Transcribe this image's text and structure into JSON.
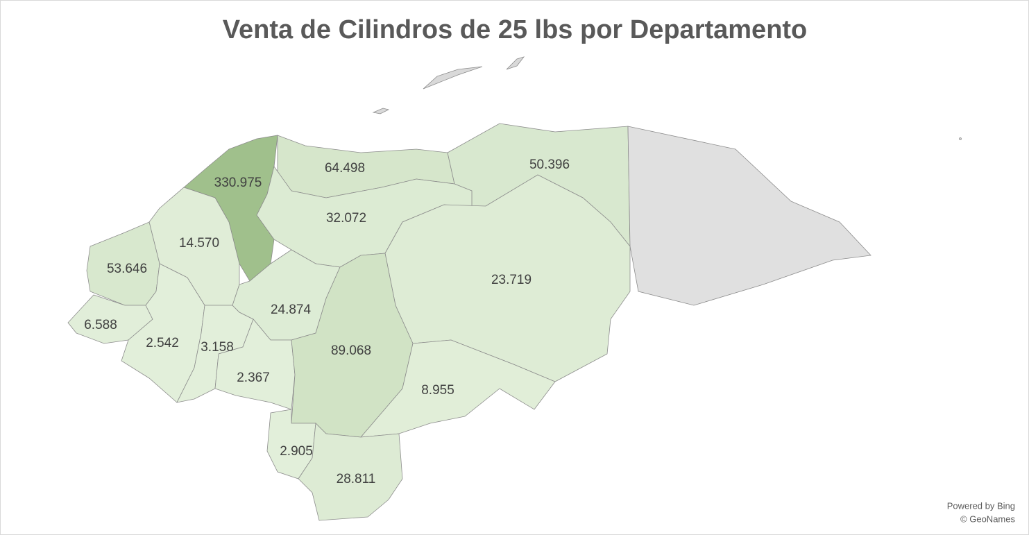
{
  "chart_data": {
    "type": "choropleth",
    "title": "Venta de Cilindros de 25 lbs por Departamento",
    "values": [
      330975,
      64498,
      50396,
      null,
      32072,
      23719,
      14570,
      53646,
      6588,
      2542,
      3158,
      24874,
      2367,
      89068,
      8955,
      2905,
      28811
    ],
    "value_labels": [
      "330.975",
      "64.498",
      "50.396",
      null,
      "32.072",
      "23.719",
      "14.570",
      "53.646",
      "6.588",
      "2.542",
      "3.158",
      "24.874",
      "2.367",
      "89.068",
      "8.955",
      "2.905",
      "28.811"
    ],
    "color_min": "#e2efda",
    "color_max": "#a0c08c",
    "null_color": "#e0e0e0",
    "attribution": [
      "Powered by Bing",
      "© GeoNames"
    ]
  }
}
